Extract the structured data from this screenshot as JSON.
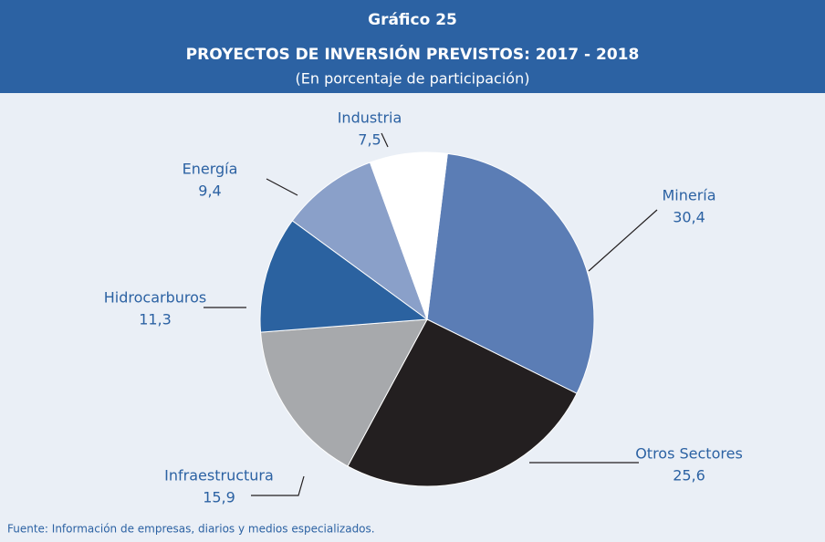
{
  "chart_data": {
    "type": "pie",
    "title": "Gráfico 25",
    "subtitle": "PROYECTOS DE INVERSIÓN PREVISTOS: 2017 - 2018",
    "unit_note": "(En porcentaje de participación)",
    "categories": [
      "Minería",
      "Otros Sectores",
      "Infraestructura",
      "Hidrocarburos",
      "Energía",
      "Industria"
    ],
    "values": [
      30.4,
      25.6,
      15.9,
      11.3,
      9.4,
      7.5
    ],
    "value_labels": [
      "30,4",
      "25,6",
      "15,9",
      "11,3",
      "9,4",
      "7,5"
    ],
    "colors": [
      "#5b7db5",
      "#231f20",
      "#a7a9ac",
      "#2b62a0",
      "#8aa0c9",
      "#ffffff"
    ],
    "source": "Fuente: Información de empresas, diarios y medios especializados."
  }
}
